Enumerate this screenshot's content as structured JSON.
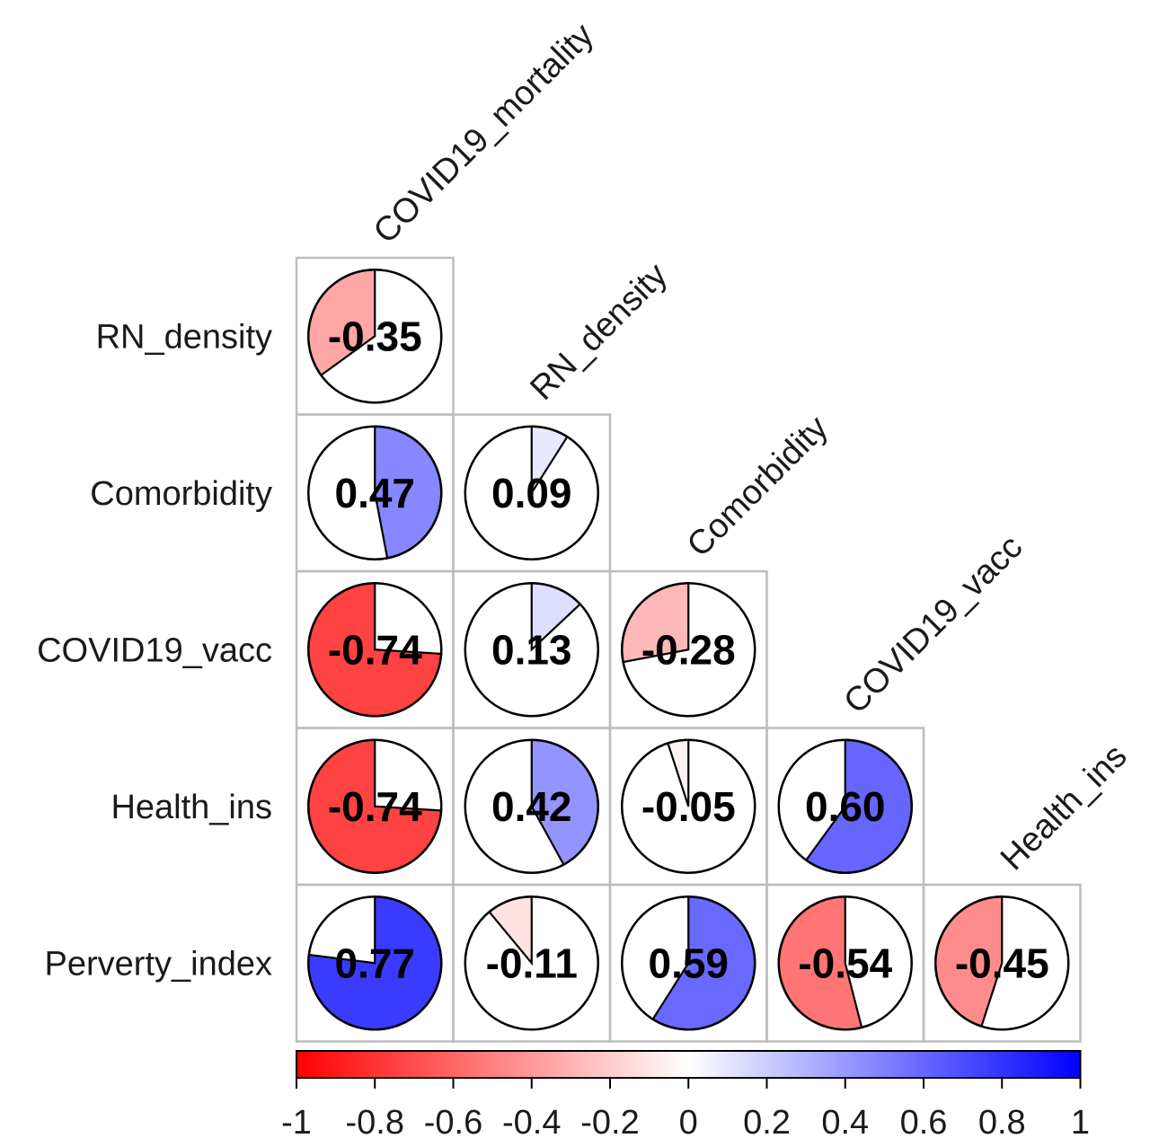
{
  "chart_data": {
    "type": "heatmap",
    "variables": [
      "COVID19_mortality",
      "RN_density",
      "Comorbidity",
      "COVID19_vacc",
      "Health_ins",
      "Perverty_index"
    ],
    "column_labels": [
      "COVID19_mortality",
      "RN_density",
      "Comorbidity",
      "COVID19_vacc",
      "Health_ins"
    ],
    "row_labels": [
      "RN_density",
      "Comorbidity",
      "COVID19_vacc",
      "Health_ins",
      "Perverty_index"
    ],
    "matrix": [
      [
        -0.35
      ],
      [
        0.47,
        0.09
      ],
      [
        -0.74,
        0.13,
        -0.28
      ],
      [
        -0.74,
        0.42,
        -0.05,
        0.6
      ],
      [
        0.77,
        -0.11,
        0.59,
        -0.54,
        -0.45
      ]
    ],
    "value_labels": [
      [
        "-0.35"
      ],
      [
        "0.47",
        "0.09"
      ],
      [
        "-0.74",
        "0.13",
        "-0.28"
      ],
      [
        "-0.74",
        "0.42",
        "-0.05",
        "0.60"
      ],
      [
        "0.77",
        "-0.11",
        "0.59",
        "-0.54",
        "-0.45"
      ]
    ],
    "method": "pie",
    "layout": "lower triangle",
    "colorbar": {
      "range": [
        -1,
        1
      ],
      "colors": {
        "negative": "#ff0000",
        "zero": "#ffffff",
        "positive": "#0000ff"
      },
      "ticks": [
        "-1",
        "-0.8",
        "-0.6",
        "-0.4",
        "-0.2",
        "0",
        "0.2",
        "0.4",
        "0.6",
        "0.8",
        "1"
      ],
      "tick_values": [
        -1,
        -0.8,
        -0.6,
        -0.4,
        -0.2,
        0,
        0.2,
        0.4,
        0.6,
        0.8,
        1
      ],
      "placement": "bottom"
    }
  }
}
